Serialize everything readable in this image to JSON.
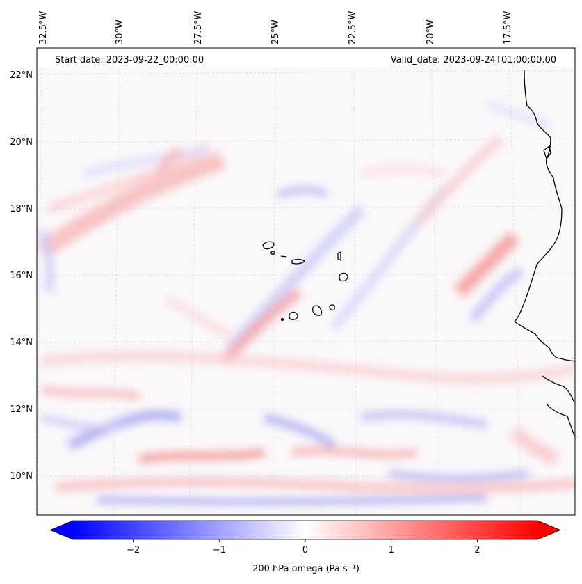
{
  "header": {
    "start_date": "Start date: 2023-09-22_00:00:00",
    "valid_date": "Valid_date: 2023-09-24T01:00:00.00"
  },
  "longitude_labels": [
    "32.5°W",
    "30°W",
    "27.5°W",
    "25°W",
    "22.5°W",
    "20°W",
    "17.5°W"
  ],
  "latitude_labels": [
    "22°N",
    "20°N",
    "18°N",
    "16°N",
    "14°N",
    "12°N",
    "10°N"
  ],
  "colorbar": {
    "ticks": [
      "−2",
      "−1",
      "0",
      "1",
      "2"
    ],
    "tick_values": [
      -2,
      -1,
      0,
      1,
      2
    ],
    "range": [
      -2.7,
      2.7
    ],
    "label": "200 hPa omega (Pa s⁻¹)",
    "colormap": "bwr",
    "low_color": "#0000ff",
    "mid_color": "#ffffff",
    "high_color": "#ff0000"
  },
  "map": {
    "lon_range": [
      -33,
      -15
    ],
    "lat_range": [
      9,
      23
    ],
    "field": "200 hPa omega",
    "coastline_color": "#000000",
    "gridline_color": "#cccccc"
  }
}
